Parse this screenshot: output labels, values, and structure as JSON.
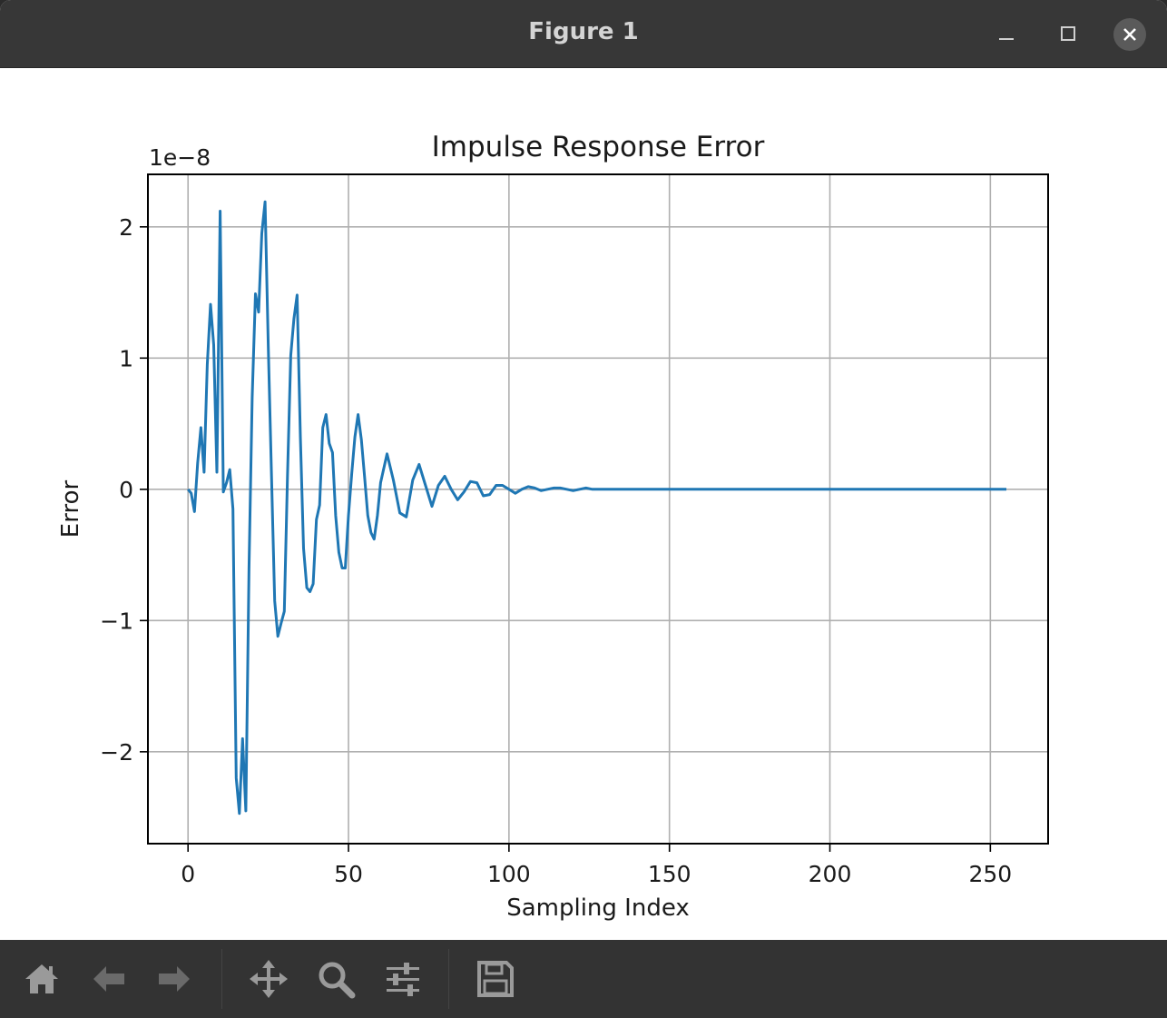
{
  "window": {
    "title": "Figure 1"
  },
  "titlebar": {
    "minimize_icon": "minimize-icon",
    "maximize_icon": "maximize-icon",
    "close_icon": "close-icon"
  },
  "toolbar": {
    "items": [
      {
        "name": "home-button",
        "icon": "home-icon"
      },
      {
        "name": "back-button",
        "icon": "arrow-left-icon"
      },
      {
        "name": "forward-button",
        "icon": "arrow-right-icon"
      },
      {
        "name": "pan-button",
        "icon": "move-icon"
      },
      {
        "name": "zoom-button",
        "icon": "magnifier-icon"
      },
      {
        "name": "subplots-button",
        "icon": "sliders-icon"
      },
      {
        "name": "save-button",
        "icon": "floppy-icon"
      }
    ]
  },
  "chart_data": {
    "type": "line",
    "title": "Impulse Response Error",
    "xlabel": "Sampling Index",
    "ylabel": "Error",
    "offset_text": "1e−8",
    "xlim": [
      -12.5,
      268
    ],
    "ylim": [
      -2.7,
      2.4
    ],
    "xticks": [
      0,
      50,
      100,
      150,
      200,
      250
    ],
    "xtick_labels": [
      "0",
      "50",
      "100",
      "150",
      "200",
      "250"
    ],
    "yticks": [
      -2,
      -1,
      0,
      1,
      2
    ],
    "ytick_labels": [
      "−2",
      "−1",
      "0",
      "1",
      "2"
    ],
    "grid": true,
    "line_color": "#1f77b4",
    "series": [
      {
        "x": [
          0,
          1,
          2,
          3,
          4,
          5,
          6,
          7,
          8,
          9,
          10,
          11,
          12,
          13,
          14,
          15,
          16,
          17,
          18,
          19,
          20,
          21,
          22,
          23,
          24,
          25,
          26,
          27,
          28,
          29,
          30,
          31,
          32,
          33,
          34,
          35,
          36,
          37,
          38,
          39,
          40,
          41,
          42,
          43,
          44,
          45,
          46,
          47,
          48,
          49,
          50,
          51,
          52,
          53,
          54,
          55,
          56,
          57,
          58,
          59,
          60,
          62,
          64,
          66,
          68,
          70,
          72,
          74,
          76,
          78,
          80,
          82,
          84,
          86,
          88,
          90,
          92,
          94,
          96,
          98,
          100,
          102,
          104,
          106,
          108,
          110,
          112,
          114,
          116,
          118,
          120,
          122,
          124,
          126,
          128,
          130,
          132,
          134,
          136,
          138,
          140,
          145,
          150,
          155,
          160,
          170,
          180,
          190,
          200,
          210,
          220,
          230,
          240,
          250,
          255
        ],
        "values": [
          0.0,
          -0.03,
          -0.17,
          0.2,
          0.47,
          0.13,
          0.95,
          1.41,
          1.1,
          0.13,
          2.12,
          -0.02,
          0.05,
          0.15,
          -0.15,
          -2.2,
          -2.47,
          -1.9,
          -2.45,
          -0.6,
          0.7,
          1.49,
          1.35,
          1.95,
          2.19,
          1.1,
          0.1,
          -0.85,
          -1.12,
          -1.02,
          -0.93,
          0.1,
          1.02,
          1.3,
          1.48,
          0.4,
          -0.45,
          -0.75,
          -0.78,
          -0.72,
          -0.23,
          -0.12,
          0.47,
          0.57,
          0.35,
          0.28,
          -0.2,
          -0.48,
          -0.6,
          -0.6,
          -0.2,
          0.12,
          0.4,
          0.57,
          0.38,
          0.1,
          -0.2,
          -0.33,
          -0.38,
          -0.2,
          0.05,
          0.27,
          0.07,
          -0.18,
          -0.21,
          0.07,
          0.19,
          0.03,
          -0.13,
          0.03,
          0.1,
          0.0,
          -0.08,
          -0.02,
          0.06,
          0.05,
          -0.05,
          -0.04,
          0.03,
          0.03,
          0.0,
          -0.03,
          0.0,
          0.02,
          0.01,
          -0.01,
          0.0,
          0.01,
          0.01,
          0.0,
          -0.01,
          0.0,
          0.01,
          0.0,
          0.0,
          0.0,
          0.0,
          0.0,
          0.0,
          0.0,
          0.0,
          0.0,
          0.0,
          0.0,
          0.0,
          0.0,
          0.0,
          0.0,
          0.0,
          0.0,
          0.0,
          0.0,
          0.0,
          0.0,
          0.0
        ]
      }
    ]
  }
}
